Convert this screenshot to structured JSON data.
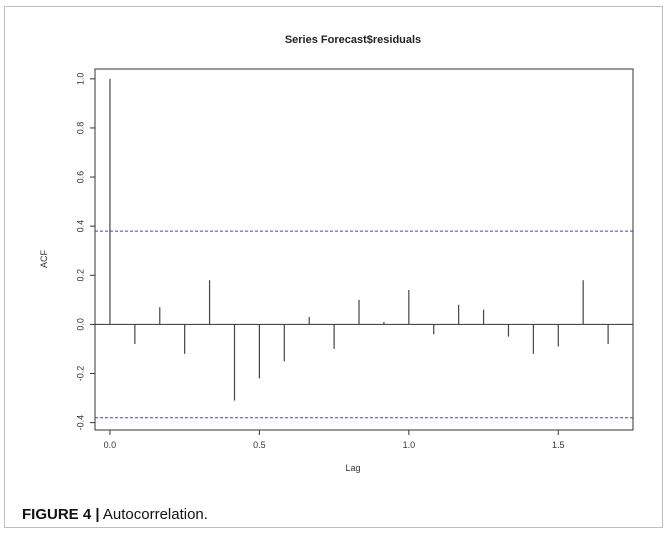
{
  "caption": {
    "label": "FIGURE 4 |",
    "text": " Autocorrelation."
  },
  "chart_data": {
    "type": "bar",
    "title": "Series  Forecast$residuals",
    "xlabel": "Lag",
    "ylabel": "ACF",
    "xlim": [
      -0.05,
      1.75
    ],
    "ylim": [
      -0.43,
      1.04
    ],
    "x_ticks": [
      "0.0",
      "0.5",
      "1.0",
      "1.5"
    ],
    "y_ticks": [
      "-0.4",
      "-0.2",
      "0.0",
      "0.2",
      "0.4",
      "0.6",
      "0.8",
      "1.0"
    ],
    "x_tick_values": [
      0.0,
      0.5,
      1.0,
      1.5
    ],
    "y_tick_values": [
      -0.4,
      -0.2,
      0.0,
      0.2,
      0.4,
      0.6,
      0.8,
      1.0
    ],
    "confidence_bounds": [
      0.38,
      -0.38
    ],
    "lags": [
      0.0,
      0.0833,
      0.1667,
      0.25,
      0.3333,
      0.4167,
      0.5,
      0.5833,
      0.6667,
      0.75,
      0.8333,
      0.9167,
      1.0,
      1.0833,
      1.1667,
      1.25,
      1.3333,
      1.4167,
      1.5,
      1.5833,
      1.6667
    ],
    "values": [
      1.0,
      -0.08,
      0.07,
      -0.12,
      0.18,
      -0.31,
      -0.22,
      -0.15,
      0.03,
      -0.1,
      0.1,
      0.01,
      0.14,
      -0.04,
      0.08,
      0.06,
      -0.05,
      -0.12,
      -0.09,
      0.18,
      -0.08
    ],
    "colors": {
      "bars": "#444444",
      "bounds": "#3b3bff",
      "axis": "#333333"
    }
  }
}
